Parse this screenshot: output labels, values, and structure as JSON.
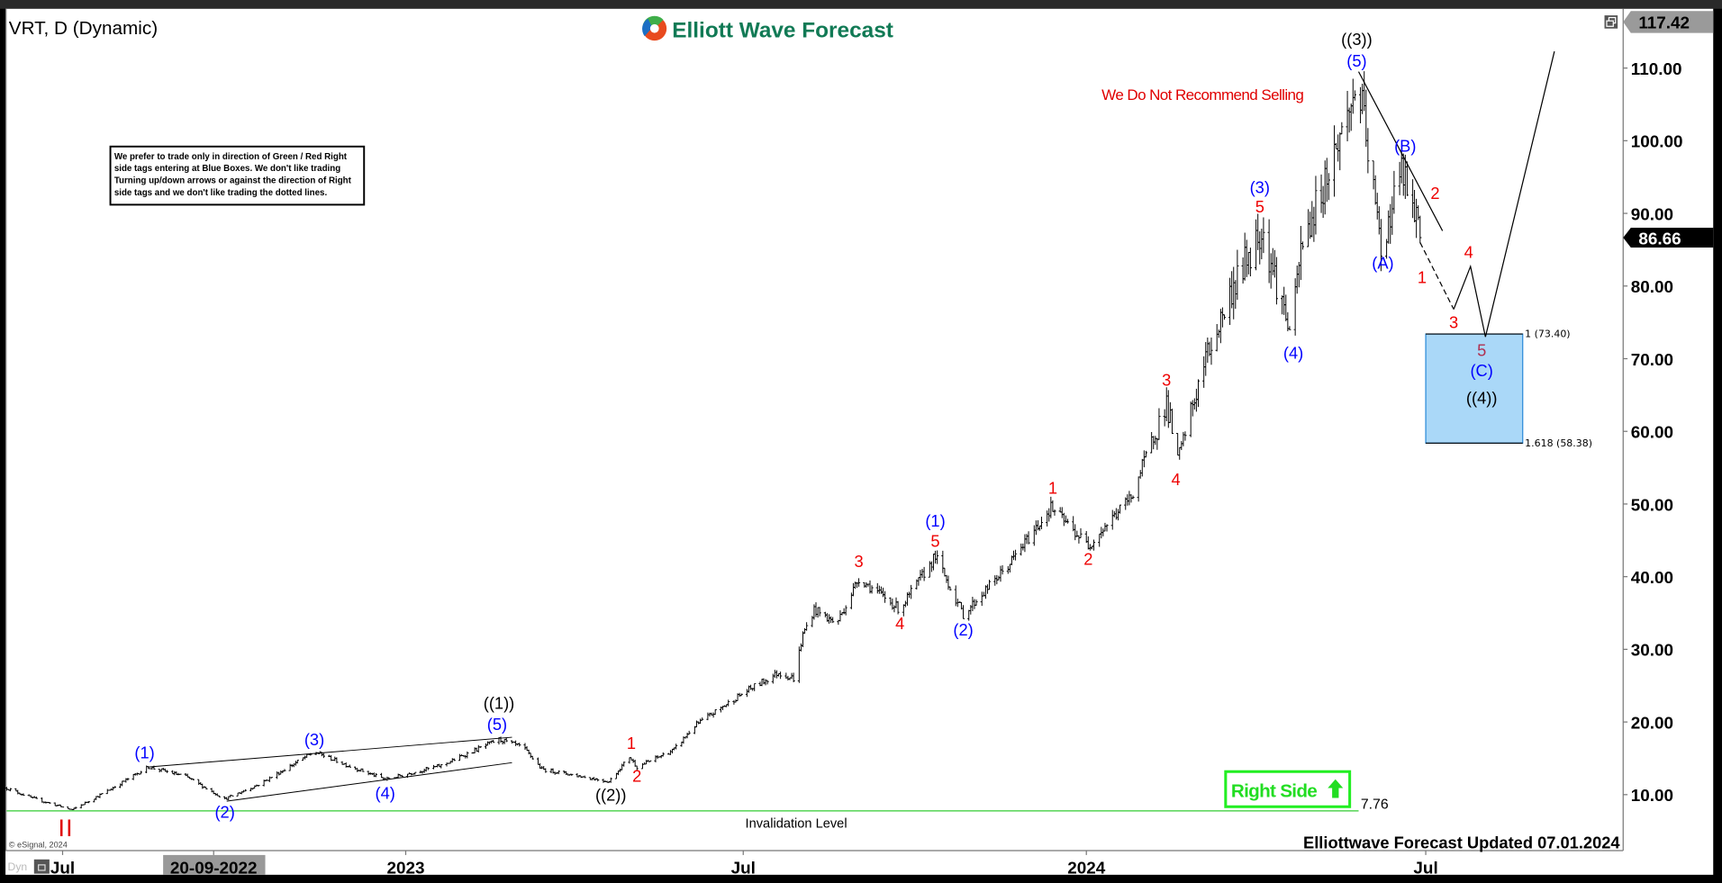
{
  "header": {
    "symbol_title": "VRT, D (Dynamic)",
    "logo_text": "Elliott Wave Forecast",
    "restore_icon": "window-restore-icon"
  },
  "notes": {
    "warning": "We Do Not Recommend Selling",
    "disclaimer_lines": [
      "We prefer to trade only in direction of Green / Red Right",
      "side tags entering at Blue Boxes. We don't like trading",
      "Turning up/down arrows or against the direction of Right",
      "side tags and we don't like trading the dotted lines."
    ],
    "invalidation_label": "Invalidation Level",
    "invalidation_value": "7.76",
    "right_side_label": "Right Side",
    "right_side_icon": "arrow-up-icon",
    "updated": "Elliottwave Forecast Updated 07.01.2024",
    "copyright": "© eSignal, 2024",
    "dyn_label": "Dyn",
    "lock_icon": "lock-icon",
    "red_marker": "II"
  },
  "chart_data": {
    "type": "ohlc-bar",
    "symbol": "VRT",
    "interval": "D",
    "ylim": [
      5,
      117.42
    ],
    "y_ticks": [
      "110.00",
      "100.00",
      "90.00",
      "80.00",
      "70.00",
      "60.00",
      "50.00",
      "40.00",
      "30.00",
      "20.00",
      "10.00"
    ],
    "y_tick_values": [
      110,
      100,
      90,
      80,
      70,
      60,
      50,
      40,
      30,
      20,
      10
    ],
    "x_ticks": [
      {
        "label": "Jul",
        "date": "2022-07-01"
      },
      {
        "label": "20-09-2022",
        "date": "2022-09-20",
        "highlighted": true
      },
      {
        "label": "2023",
        "date": "2023-01-01"
      },
      {
        "label": "Jul",
        "date": "2023-07-01"
      },
      {
        "label": "2024",
        "date": "2024-01-01"
      },
      {
        "label": "Jul",
        "date": "2024-07-01"
      }
    ],
    "top_price_label": "117.42",
    "last_price_label": "86.66",
    "last_price": 86.66,
    "grid": false,
    "price_path": [
      [
        "2022-06-01",
        10.9
      ],
      [
        "2022-06-15",
        9.5
      ],
      [
        "2022-07-06",
        7.9
      ],
      [
        "2022-07-25",
        10.5
      ],
      [
        "2022-08-16",
        13.8
      ],
      [
        "2022-09-05",
        12.5
      ],
      [
        "2022-09-26",
        9.4
      ],
      [
        "2022-10-15",
        11.5
      ],
      [
        "2022-11-13",
        15.9
      ],
      [
        "2022-12-01",
        14.0
      ],
      [
        "2022-12-21",
        12.1
      ],
      [
        "2023-01-20",
        14.0
      ],
      [
        "2023-02-20",
        17.6
      ],
      [
        "2023-03-05",
        16.5
      ],
      [
        "2023-03-15",
        13.5
      ],
      [
        "2023-04-20",
        11.8
      ],
      [
        "2023-05-01",
        15.2
      ],
      [
        "2023-05-05",
        13.8
      ],
      [
        "2023-05-25",
        16.2
      ],
      [
        "2023-06-05",
        19.5
      ],
      [
        "2023-07-01",
        24.0
      ],
      [
        "2023-07-20",
        26.8
      ],
      [
        "2023-07-28",
        26.0
      ],
      [
        "2023-08-02",
        32.0
      ],
      [
        "2023-08-08",
        35.5
      ],
      [
        "2023-08-20",
        33.5
      ],
      [
        "2023-09-01",
        39.8
      ],
      [
        "2023-09-23",
        35.5
      ],
      [
        "2023-10-12",
        42.8
      ],
      [
        "2023-10-27",
        34.8
      ],
      [
        "2023-11-20",
        41.5
      ],
      [
        "2023-12-13",
        49.5
      ],
      [
        "2024-01-02",
        44.3
      ],
      [
        "2024-01-25",
        51.0
      ],
      [
        "2024-02-13",
        64.0
      ],
      [
        "2024-02-19",
        56.0
      ],
      [
        "2024-03-05",
        70.0
      ],
      [
        "2024-03-20",
        80.0
      ],
      [
        "2024-04-04",
        88.0
      ],
      [
        "2024-04-20",
        73.0
      ],
      [
        "2024-04-25",
        85.0
      ],
      [
        "2024-05-10",
        96.0
      ],
      [
        "2024-05-26",
        108.0
      ],
      [
        "2024-06-07",
        85.0
      ],
      [
        "2024-06-18",
        96.0
      ],
      [
        "2024-06-28",
        86.66
      ]
    ],
    "invalidation_level": 7.76,
    "invalidation_range": [
      "2022-06-01",
      "2024-05-26"
    ],
    "blue_box": {
      "from": "2024-07-01",
      "to": "2024-08-22",
      "top": 73.4,
      "bottom": 58.38,
      "top_label": "1 (73.40)",
      "bottom_label": "1.618 (58.38)",
      "color": "#aad8f8"
    },
    "diagonal_lines": [
      [
        [
          "2022-08-16",
          13.8
        ],
        [
          "2023-02-27",
          17.9
        ]
      ],
      [
        [
          "2022-09-27",
          9.1
        ],
        [
          "2023-02-27",
          14.4
        ]
      ]
    ],
    "projection_lines": [
      {
        "style": "solid",
        "points": [
          [
            "2024-05-26",
            109.5
          ],
          [
            "2024-07-10",
            87.6
          ]
        ]
      },
      {
        "style": "dashed",
        "points": [
          [
            "2024-06-28",
            86.0
          ],
          [
            "2024-07-16",
            76.8
          ]
        ]
      },
      {
        "style": "solid",
        "points": [
          [
            "2024-07-16",
            76.8
          ],
          [
            "2024-07-25",
            82.7
          ],
          [
            "2024-08-02",
            73.0
          ],
          [
            "2024-09-08",
            112.3
          ]
        ]
      }
    ],
    "annotations": [
      {
        "text": "(1)",
        "date": "2022-08-14",
        "price": 15.6,
        "color": "#0000ff"
      },
      {
        "text": "(2)",
        "date": "2022-09-26",
        "price": 7.4,
        "color": "#0000ff"
      },
      {
        "text": "(3)",
        "date": "2022-11-13",
        "price": 17.4,
        "color": "#0000ff"
      },
      {
        "text": "(4)",
        "date": "2022-12-21",
        "price": 10.0,
        "color": "#0000ff"
      },
      {
        "text": "(5)",
        "date": "2023-02-19",
        "price": 19.5,
        "color": "#0000ff"
      },
      {
        "text": "((1))",
        "date": "2023-02-20",
        "price": 22.4,
        "color": "#000000"
      },
      {
        "text": "((2))",
        "date": "2023-04-21",
        "price": 9.8,
        "color": "#000000"
      },
      {
        "text": "1",
        "date": "2023-05-02",
        "price": 16.9,
        "color": "#ee0000"
      },
      {
        "text": "2",
        "date": "2023-05-05",
        "price": 12.4,
        "color": "#ee0000"
      },
      {
        "text": "3",
        "date": "2023-09-01",
        "price": 41.9,
        "color": "#ee0000"
      },
      {
        "text": "4",
        "date": "2023-09-23",
        "price": 33.4,
        "color": "#ee0000"
      },
      {
        "text": "(1)",
        "date": "2023-10-12",
        "price": 47.5,
        "color": "#0000ff"
      },
      {
        "text": "5",
        "date": "2023-10-12",
        "price": 44.7,
        "color": "#ee0000"
      },
      {
        "text": "(2)",
        "date": "2023-10-27",
        "price": 32.5,
        "color": "#0000ff"
      },
      {
        "text": "1",
        "date": "2023-12-14",
        "price": 52.0,
        "color": "#ee0000"
      },
      {
        "text": "2",
        "date": "2024-01-02",
        "price": 42.2,
        "color": "#ee0000"
      },
      {
        "text": "3",
        "date": "2024-02-13",
        "price": 66.9,
        "color": "#ee0000"
      },
      {
        "text": "4",
        "date": "2024-02-18",
        "price": 53.2,
        "color": "#ee0000"
      },
      {
        "text": "(3)",
        "date": "2024-04-03",
        "price": 93.4,
        "color": "#0000ff"
      },
      {
        "text": "5",
        "date": "2024-04-03",
        "price": 90.7,
        "color": "#ee0000"
      },
      {
        "text": "(4)",
        "date": "2024-04-21",
        "price": 70.6,
        "color": "#0000ff"
      },
      {
        "text": "((3))",
        "date": "2024-05-25",
        "price": 113.8,
        "color": "#000000"
      },
      {
        "text": "(5)",
        "date": "2024-05-25",
        "price": 110.8,
        "color": "#0000ff"
      },
      {
        "text": "(A)",
        "date": "2024-06-08",
        "price": 83.0,
        "color": "#0000ff"
      },
      {
        "text": "(B)",
        "date": "2024-06-20",
        "price": 99.1,
        "color": "#0000ff"
      },
      {
        "text": "1",
        "date": "2024-06-29",
        "price": 81.0,
        "color": "#ee0000"
      },
      {
        "text": "2",
        "date": "2024-07-06",
        "price": 92.6,
        "color": "#ee0000"
      },
      {
        "text": "3",
        "date": "2024-07-16",
        "price": 74.8,
        "color": "#ee0000"
      },
      {
        "text": "4",
        "date": "2024-07-24",
        "price": 84.5,
        "color": "#ee0000"
      },
      {
        "text": "5",
        "date": "2024-07-31",
        "price": 71.0,
        "color": "#b03050"
      },
      {
        "text": "(C)",
        "date": "2024-07-31",
        "price": 68.2,
        "color": "#0000ff"
      },
      {
        "text": "((4))",
        "date": "2024-07-31",
        "price": 64.4,
        "color": "#000000"
      }
    ]
  }
}
